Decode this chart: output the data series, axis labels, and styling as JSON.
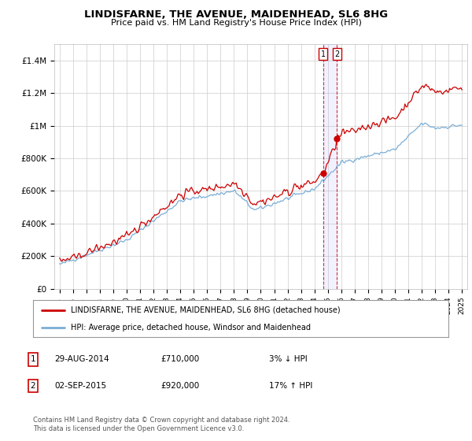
{
  "title": "LINDISFARNE, THE AVENUE, MAIDENHEAD, SL6 8HG",
  "subtitle": "Price paid vs. HM Land Registry's House Price Index (HPI)",
  "legend_label1": "LINDISFARNE, THE AVENUE, MAIDENHEAD, SL6 8HG (detached house)",
  "legend_label2": "HPI: Average price, detached house, Windsor and Maidenhead",
  "annotation1_date": "29-AUG-2014",
  "annotation1_price": "£710,000",
  "annotation1_hpi": "3% ↓ HPI",
  "annotation2_date": "02-SEP-2015",
  "annotation2_price": "£920,000",
  "annotation2_hpi": "17% ↑ HPI",
  "footer": "Contains HM Land Registry data © Crown copyright and database right 2024.\nThis data is licensed under the Open Government Licence v3.0.",
  "line1_color": "#cc0000",
  "line2_color": "#7aaed6",
  "grid_color": "#cccccc",
  "background_color": "#ffffff",
  "ylim": [
    0,
    1500000
  ],
  "yticks": [
    0,
    200000,
    400000,
    600000,
    800000,
    1000000,
    1200000,
    1400000
  ],
  "ytick_labels": [
    "£0",
    "£200K",
    "£400K",
    "£600K",
    "£800K",
    "£1M",
    "£1.2M",
    "£1.4M"
  ],
  "sale1_year": 2014.66,
  "sale1_price": 710000,
  "sale2_year": 2015.67,
  "sale2_price": 920000
}
